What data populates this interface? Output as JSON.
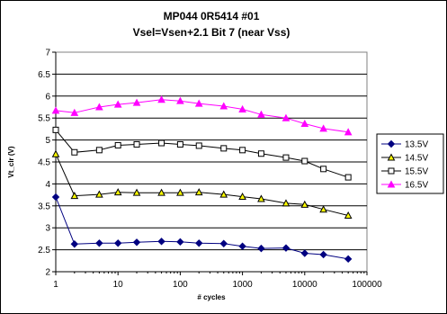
{
  "chart_data": {
    "type": "line",
    "title": "MP044 0R5414 #01",
    "subtitle": "Vsel=Vsen+2.1   Bit 7 (near Vss)",
    "xlabel": "# cycles",
    "ylabel": "Vt_clr (V)",
    "xscale": "log",
    "xlim": [
      1,
      100000
    ],
    "ylim": [
      2,
      7
    ],
    "xticks": [
      1,
      10,
      100,
      1000,
      10000,
      100000
    ],
    "xtick_labels": [
      "1",
      "10",
      "100",
      "1000",
      "10000",
      "100000"
    ],
    "yticks": [
      2,
      2.5,
      3,
      3.5,
      4,
      4.5,
      5,
      5.5,
      6,
      6.5,
      7
    ],
    "ytick_labels": [
      "2",
      "2.5",
      "3",
      "3.5",
      "4",
      "4.5",
      "5",
      "5.5",
      "6",
      "6.5",
      "7"
    ],
    "grid": "horizontal",
    "legend_position": "right",
    "x": [
      1,
      2,
      5,
      10,
      20,
      50,
      100,
      200,
      500,
      1000,
      2000,
      5000,
      10000,
      20000,
      50000
    ],
    "series": [
      {
        "name": "13.5V",
        "color": "#000080",
        "marker": "diamond",
        "values": [
          3.7,
          2.63,
          2.65,
          2.65,
          2.67,
          2.69,
          2.68,
          2.65,
          2.64,
          2.58,
          2.53,
          2.54,
          2.42,
          2.39,
          2.29
        ]
      },
      {
        "name": "14.5V",
        "color": "#000000",
        "marker": "triangle",
        "marker_fill": "#ffff00",
        "values": [
          4.68,
          3.73,
          3.76,
          3.81,
          3.8,
          3.8,
          3.8,
          3.81,
          3.76,
          3.71,
          3.66,
          3.56,
          3.53,
          3.42,
          3.28
        ]
      },
      {
        "name": "15.5V",
        "color": "#000000",
        "marker": "square",
        "marker_fill": "#ffffff",
        "values": [
          5.23,
          4.72,
          4.77,
          4.88,
          4.9,
          4.93,
          4.9,
          4.87,
          4.81,
          4.77,
          4.69,
          4.6,
          4.52,
          4.34,
          4.15
        ]
      },
      {
        "name": "16.5V",
        "color": "#ff00ff",
        "marker": "triangle",
        "values": [
          5.67,
          5.62,
          5.75,
          5.81,
          5.85,
          5.92,
          5.89,
          5.83,
          5.77,
          5.7,
          5.58,
          5.5,
          5.37,
          5.26,
          5.18
        ]
      }
    ]
  }
}
